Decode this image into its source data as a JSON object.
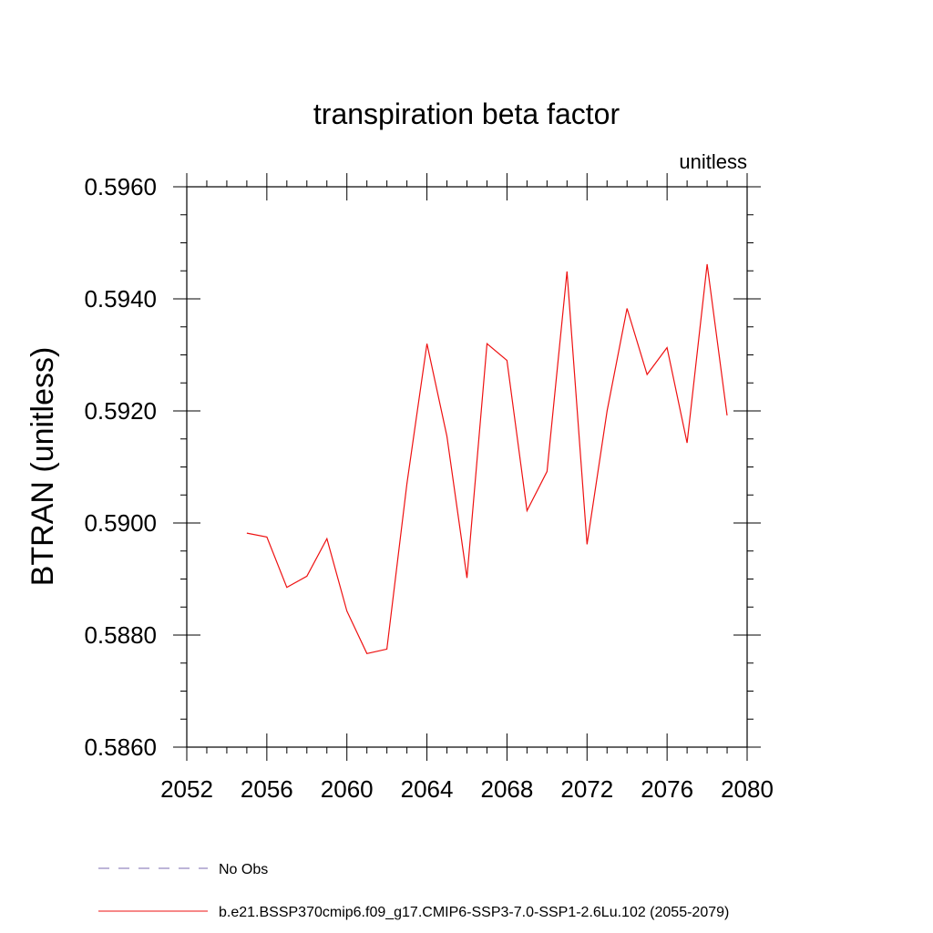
{
  "chart_data": {
    "type": "line",
    "title": "transpiration beta factor",
    "units_label": "unitless",
    "ylabel": "BTRAN  (unitless)",
    "xlabel": "",
    "xlim": [
      2052,
      2080
    ],
    "ylim": [
      0.586,
      0.596
    ],
    "x_major_ticks": [
      2052,
      2056,
      2060,
      2064,
      2068,
      2072,
      2076,
      2080
    ],
    "x_minor_step": 1,
    "y_major_ticks": [
      "0.5860",
      "0.5880",
      "0.5900",
      "0.5920",
      "0.5940",
      "0.5960"
    ],
    "y_minor_step": 0.0005,
    "grid": false,
    "legend_position": "bottom",
    "series": [
      {
        "name": "No Obs",
        "color": "#7b6bb0",
        "dash": true,
        "x": [],
        "y": []
      },
      {
        "name": "b.e21.BSSP370cmip6.f09_g17.CMIP6-SSP3-7.0-SSP1-2.6Lu.102 (2055-2079)",
        "color": "#ee1111",
        "dash": false,
        "x": [
          2055,
          2056,
          2057,
          2058,
          2059,
          2060,
          2061,
          2062,
          2063,
          2064,
          2065,
          2066,
          2067,
          2068,
          2069,
          2070,
          2071,
          2072,
          2073,
          2074,
          2075,
          2076,
          2077,
          2078,
          2079
        ],
        "y": [
          0.58982,
          0.58975,
          0.58885,
          0.58905,
          0.58972,
          0.58843,
          0.58767,
          0.58775,
          0.5907,
          0.5932,
          0.59155,
          0.58902,
          0.5932,
          0.5929,
          0.59022,
          0.59092,
          0.59449,
          0.58962,
          0.592,
          0.59383,
          0.59265,
          0.59313,
          0.59143,
          0.59462,
          0.59192
        ]
      }
    ]
  }
}
